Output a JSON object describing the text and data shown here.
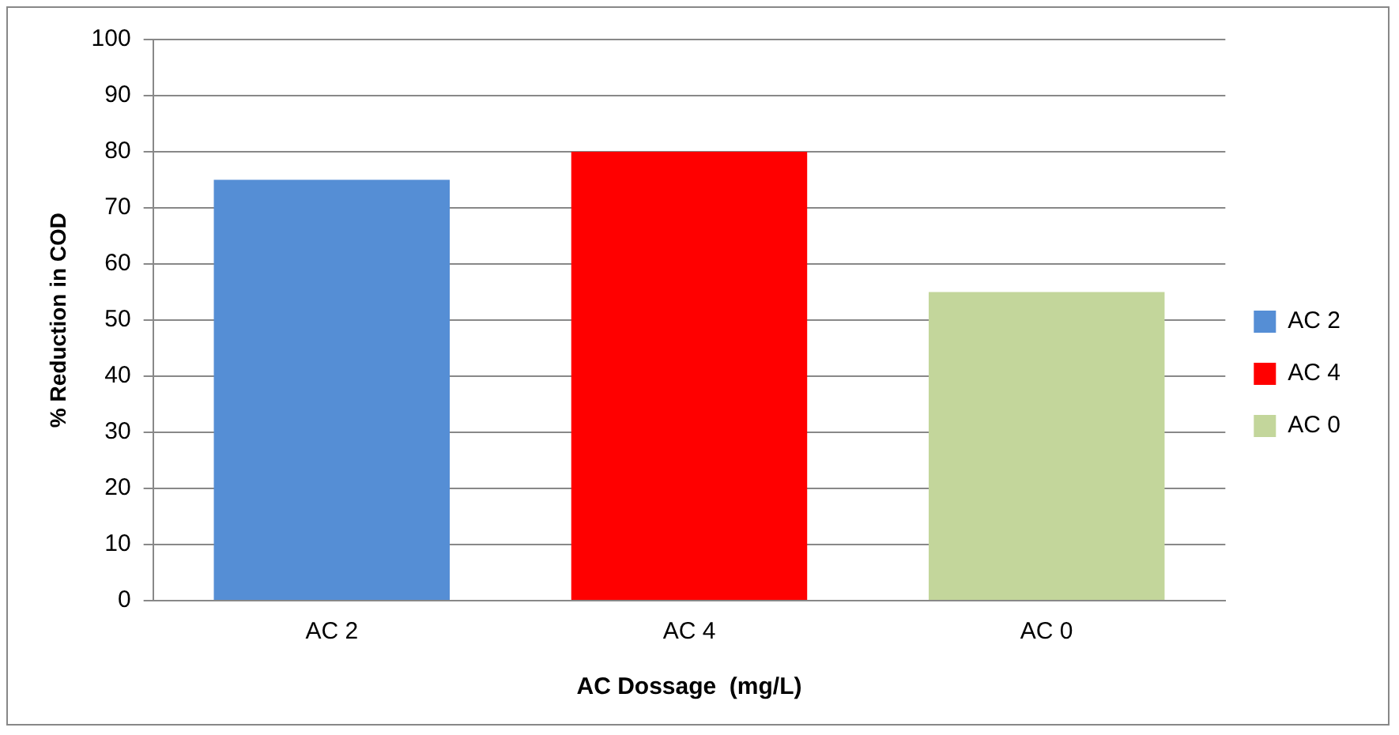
{
  "chart_data": {
    "type": "bar",
    "xlabel": "AC Dossage  (mg/L)",
    "ylabel": "% Reduction in COD",
    "categories": [
      "AC 2",
      "AC 4",
      "AC 0"
    ],
    "series": [
      {
        "name": "AC 2",
        "color": "#558ed5",
        "values": [
          75,
          null,
          null
        ]
      },
      {
        "name": "AC 4",
        "color": "#ff0000",
        "values": [
          null,
          80,
          null
        ]
      },
      {
        "name": "AC 0",
        "color": "#c3d69b",
        "values": [
          null,
          null,
          55
        ]
      }
    ],
    "ylim": [
      0,
      100
    ],
    "yticks": [
      0,
      10,
      20,
      30,
      40,
      50,
      60,
      70,
      80,
      90,
      100
    ],
    "grid": "y",
    "legend": "right"
  }
}
